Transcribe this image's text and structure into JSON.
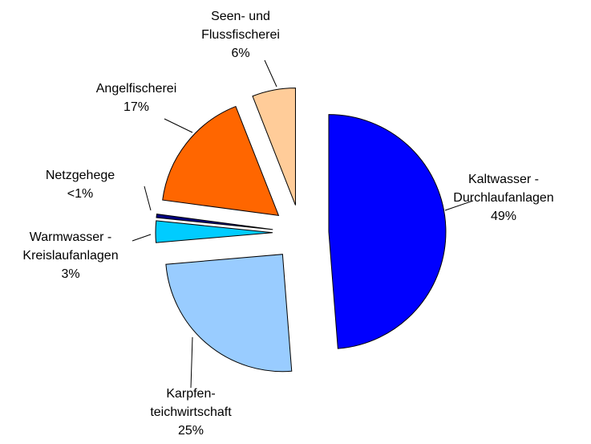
{
  "chart_data": {
    "type": "pie",
    "categories": [
      "Kaltwasser -\nDurchlaufanlagen",
      "Karpfen-\nteichwirtschaft",
      "Warmwasser -\nKreislaufanlagen",
      "Netzgehege",
      "Angelfischerei",
      "Seen- und\nFlussfischerei"
    ],
    "values": [
      49,
      25,
      3,
      0.5,
      17,
      6
    ],
    "value_labels": [
      "49%",
      "25%",
      "3%",
      "<1%",
      "17%",
      "6%"
    ],
    "colors": [
      "#0000ff",
      "#99ccff",
      "#00ccff",
      "#000080",
      "#ff6600",
      "#ffcc99"
    ]
  }
}
